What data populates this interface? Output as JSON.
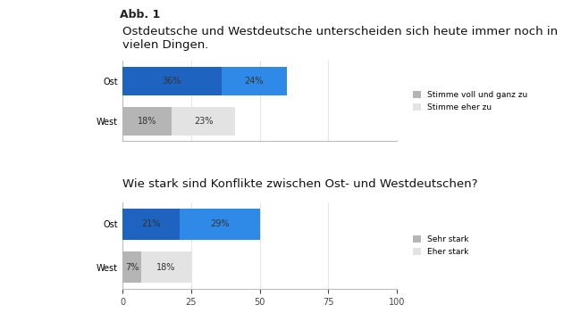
{
  "figure_label": "Abb. 1",
  "chart_data": [
    {
      "type": "bar",
      "orientation": "horizontal",
      "stacked": true,
      "data_labels": true,
      "title": "Ostdeutsche und Westdeutsche unterscheiden sich heute immer noch in vielen Dingen.",
      "categories": [
        "Ost",
        "West"
      ],
      "series": [
        {
          "name": "Stimme voll und ganz zu",
          "values": [
            36,
            18
          ],
          "value_labels": [
            "36%",
            "18%"
          ],
          "colors": [
            "#1d63bf",
            "#b5b5b5"
          ]
        },
        {
          "name": "Stimme eher zu",
          "values": [
            24,
            23
          ],
          "value_labels": [
            "24%",
            "23%"
          ],
          "colors": [
            "#2e8ae6",
            "#e3e3e3"
          ]
        }
      ],
      "xlim": [
        0,
        100
      ],
      "xticks": [
        0,
        25,
        50,
        75,
        100
      ],
      "grid": true,
      "tick_labels": "y",
      "legend": "center left"
    },
    {
      "type": "bar",
      "orientation": "horizontal",
      "stacked": true,
      "data_labels": true,
      "title": "Wie stark sind Konflikte zwischen Ost- und Westdeutschen?",
      "categories": [
        "Ost",
        "West"
      ],
      "series": [
        {
          "name": "Sehr stark",
          "values": [
            21,
            7
          ],
          "value_labels": [
            "21%",
            "7%"
          ],
          "colors": [
            "#1d63bf",
            "#b5b5b5"
          ]
        },
        {
          "name": "Eher stark",
          "values": [
            29,
            18
          ],
          "value_labels": [
            "29%",
            "18%"
          ],
          "colors": [
            "#2e8ae6",
            "#e3e3e3"
          ]
        }
      ],
      "xlim": [
        0,
        100
      ],
      "xticks": [
        0,
        25,
        50,
        75,
        100
      ],
      "grid": true,
      "legend": "center left"
    }
  ]
}
